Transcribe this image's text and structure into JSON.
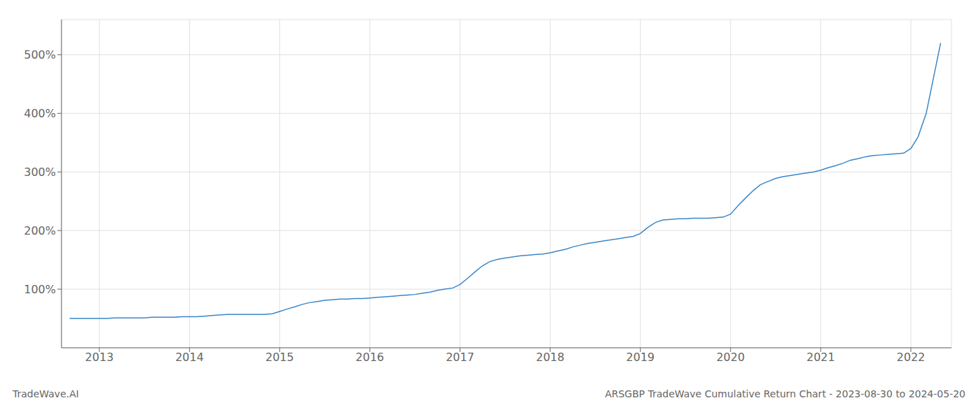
{
  "chart_data": {
    "type": "line",
    "title": "ARSGBP TradeWave Cumulative Return Chart - 2023-08-30 to 2024-05-20",
    "annotations": [
      "TradeWave.AI"
    ],
    "color": "#3a87c8",
    "grid": true,
    "xlim": [
      2012.58,
      2022.45
    ],
    "xticks": [
      2013,
      2014,
      2015,
      2016,
      2017,
      2018,
      2019,
      2020,
      2021,
      2022
    ],
    "ylim": [
      0,
      560
    ],
    "yticks": [
      {
        "value": 100,
        "label": "100%"
      },
      {
        "value": 200,
        "label": "200%"
      },
      {
        "value": 300,
        "label": "300%"
      },
      {
        "value": 400,
        "label": "400%"
      },
      {
        "value": 500,
        "label": "500%"
      }
    ],
    "x": [
      2012.67,
      2013.0,
      2013.08,
      2013.17,
      2013.25,
      2013.33,
      2013.42,
      2013.5,
      2013.58,
      2013.67,
      2013.75,
      2013.83,
      2013.92,
      2014.0,
      2014.08,
      2014.17,
      2014.25,
      2014.33,
      2014.42,
      2014.5,
      2014.58,
      2014.67,
      2014.75,
      2014.83,
      2014.92,
      2015.0,
      2015.08,
      2015.17,
      2015.25,
      2015.33,
      2015.42,
      2015.5,
      2015.58,
      2015.67,
      2015.75,
      2015.83,
      2015.92,
      2016.0,
      2016.08,
      2016.17,
      2016.25,
      2016.33,
      2016.42,
      2016.5,
      2016.58,
      2016.67,
      2016.75,
      2016.83,
      2016.92,
      2017.0,
      2017.08,
      2017.17,
      2017.25,
      2017.33,
      2017.42,
      2017.5,
      2017.58,
      2017.67,
      2017.75,
      2017.83,
      2017.92,
      2018.0,
      2018.08,
      2018.17,
      2018.25,
      2018.33,
      2018.42,
      2018.5,
      2018.58,
      2018.67,
      2018.75,
      2018.83,
      2018.92,
      2019.0,
      2019.08,
      2019.17,
      2019.25,
      2019.33,
      2019.42,
      2019.5,
      2019.58,
      2019.67,
      2019.75,
      2019.83,
      2019.92,
      2020.0,
      2020.08,
      2020.17,
      2020.25,
      2020.33,
      2020.42,
      2020.5,
      2020.58,
      2020.67,
      2020.75,
      2020.83,
      2020.92,
      2021.0,
      2021.08,
      2021.17,
      2021.25,
      2021.33,
      2021.42,
      2021.5,
      2021.58,
      2021.67,
      2021.75,
      2021.83,
      2021.92,
      2022.0,
      2022.08,
      2022.17,
      2022.25,
      2022.33
    ],
    "values": [
      50,
      50,
      50,
      51,
      51,
      51,
      51,
      51,
      52,
      52,
      52,
      52,
      53,
      53,
      53,
      54,
      55,
      56,
      57,
      57,
      57,
      57,
      57,
      57,
      58,
      62,
      66,
      70,
      74,
      77,
      79,
      81,
      82,
      83,
      83,
      84,
      84,
      85,
      86,
      87,
      88,
      89,
      90,
      91,
      93,
      95,
      98,
      100,
      102,
      108,
      118,
      130,
      140,
      147,
      151,
      153,
      155,
      157,
      158,
      159,
      160,
      162,
      165,
      168,
      172,
      175,
      178,
      180,
      182,
      184,
      186,
      188,
      190,
      195,
      205,
      214,
      218,
      219,
      220,
      220,
      221,
      221,
      221,
      222,
      223,
      228,
      242,
      256,
      268,
      278,
      284,
      289,
      292,
      294,
      296,
      298,
      300,
      303,
      307,
      311,
      315,
      320,
      323,
      326,
      328,
      329,
      330,
      331,
      332,
      340,
      360,
      400,
      460,
      520
    ]
  }
}
